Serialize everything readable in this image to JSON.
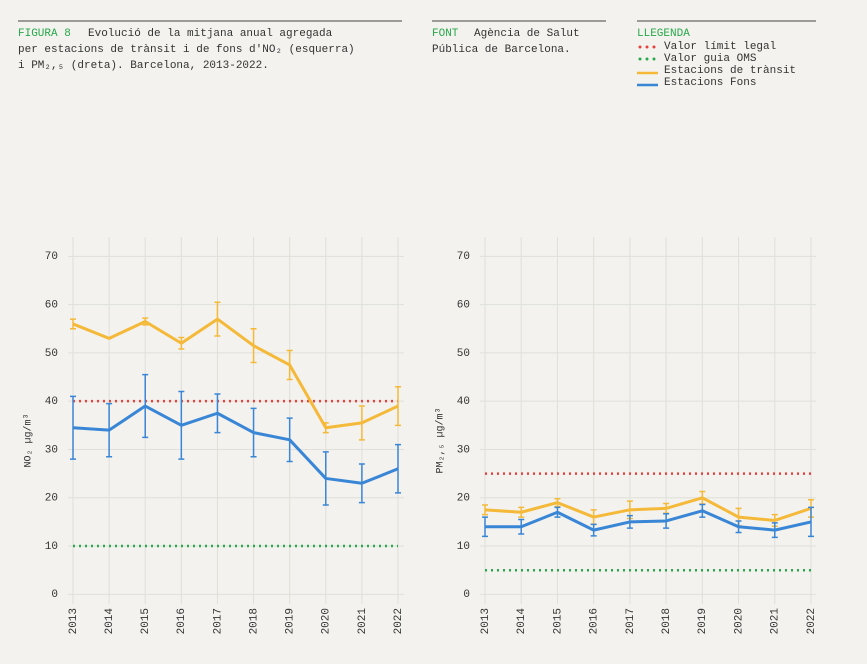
{
  "figure": {
    "label": "FIGURA 8",
    "lines": [
      "Evolució de la mitjana anual agregada",
      "per estacions de trànsit i de fons d'NO₂ (esquerra)",
      "i PM₂,₅ (dreta). Barcelona, 2013-2022."
    ]
  },
  "source": {
    "label": "FONT",
    "lines": [
      "Agència de Salut",
      "Pública de Barcelona."
    ]
  },
  "legend": {
    "title": "LLEGENDA",
    "items": [
      {
        "name": "Valor límit legal",
        "color": "#e8413c",
        "style": "dotted"
      },
      {
        "name": "Valor guia OMS",
        "color": "#27a84a",
        "style": "dotted"
      },
      {
        "name": "Estacions de trànsit",
        "color": "#f5b93a",
        "style": "solid"
      },
      {
        "name": "Estacions Fons",
        "color": "#3a86d6",
        "style": "solid"
      }
    ]
  },
  "chart_data": [
    {
      "type": "line",
      "y_label": "NO₂ µg/m³",
      "categories": [
        "2013",
        "2014",
        "2015",
        "2016",
        "2017",
        "2018",
        "2019",
        "2020",
        "2021",
        "2022"
      ],
      "ylim": [
        -2,
        74
      ],
      "yticks": [
        0,
        10,
        20,
        30,
        40,
        50,
        60,
        70
      ],
      "grid": true,
      "reference_lines": [
        {
          "value": 40,
          "color": "#e8413c",
          "style": "dotted"
        },
        {
          "value": 10,
          "color": "#27a84a",
          "style": "dotted"
        }
      ],
      "series": [
        {
          "color": "#f5b93a",
          "values": [
            56,
            53,
            56.5,
            52,
            57,
            51.5,
            47.5,
            34.5,
            35.5,
            39
          ],
          "errors": [
            1,
            0,
            0.7,
            1.2,
            3.5,
            3.5,
            3,
            1,
            3.5,
            4
          ]
        },
        {
          "color": "#3a86d6",
          "values": [
            34.5,
            34,
            39,
            35,
            37.5,
            33.5,
            32,
            24,
            23,
            26
          ],
          "errors": [
            6.5,
            5.5,
            6.5,
            7,
            4,
            5,
            4.5,
            5.5,
            4,
            5
          ]
        }
      ]
    },
    {
      "type": "line",
      "y_label": "PM₂,₅ µg/m³",
      "categories": [
        "2013",
        "2014",
        "2015",
        "2016",
        "2017",
        "2018",
        "2019",
        "2020",
        "2021",
        "2022"
      ],
      "ylim": [
        -2,
        74
      ],
      "yticks": [
        0,
        10,
        20,
        30,
        40,
        50,
        60,
        70
      ],
      "grid": true,
      "reference_lines": [
        {
          "value": 25,
          "color": "#e8413c",
          "style": "dotted"
        },
        {
          "value": 5,
          "color": "#27a84a",
          "style": "dotted"
        }
      ],
      "series": [
        {
          "color": "#f5b93a",
          "values": [
            17.5,
            17,
            19,
            16,
            17.5,
            17.8,
            20,
            16,
            15.3,
            17.8
          ],
          "errors": [
            1,
            1,
            0.8,
            1.5,
            1.8,
            1,
            1.3,
            1.8,
            1.2,
            1.8
          ]
        },
        {
          "color": "#3a86d6",
          "values": [
            14,
            14,
            17,
            13.3,
            15,
            15.2,
            17.3,
            14,
            13.3,
            15
          ],
          "errors": [
            2,
            1.5,
            1,
            1.2,
            1.3,
            1.5,
            1.3,
            1.2,
            1.5,
            3
          ]
        }
      ]
    }
  ]
}
